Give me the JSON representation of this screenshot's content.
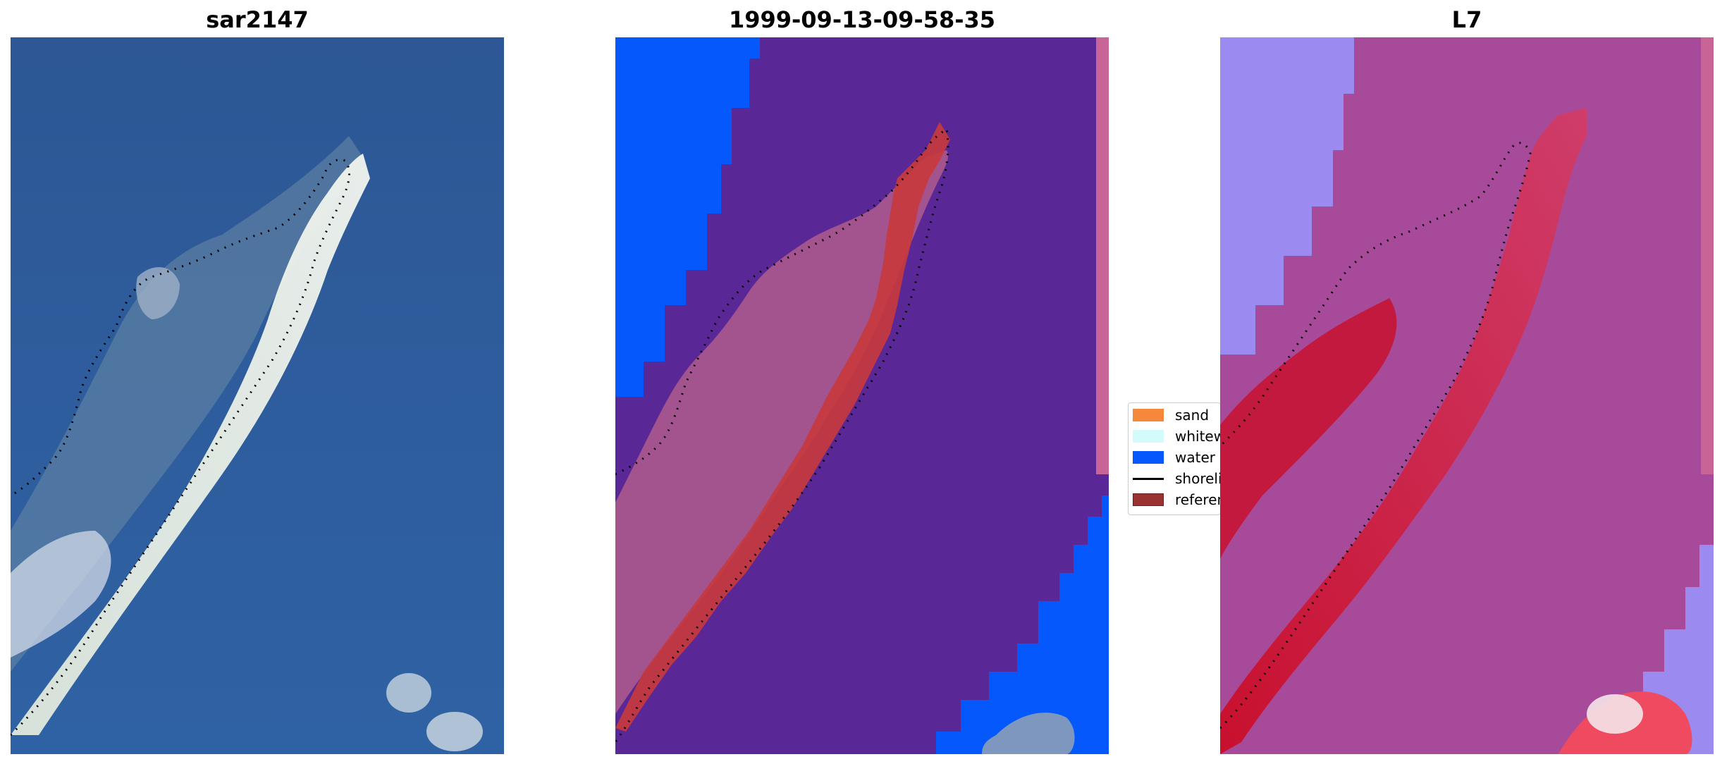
{
  "panels": [
    {
      "title": "sar2147"
    },
    {
      "title": "1999-09-13-09-58-35"
    },
    {
      "title": "L7"
    }
  ],
  "legend": {
    "items": [
      {
        "label": "sand",
        "color": "#f5883a",
        "kind": "patch"
      },
      {
        "label": "whitewater",
        "color": "#d4fbfb",
        "kind": "patch"
      },
      {
        "label": "water",
        "color": "#0558fc",
        "kind": "patch"
      },
      {
        "label": "shoreline",
        "color": "#000000",
        "kind": "line"
      },
      {
        "label": "reference shoreline buffer",
        "color": "#9b3232",
        "kind": "patch"
      }
    ]
  },
  "colors": {
    "satellite_sea": "#2f5c9a",
    "satellite_sand": "#e9ecdf",
    "class_water": "#0558fc",
    "class_background": "#5a2896",
    "class_sand_overlay": "#b05a8c",
    "buffer_red": "#c8383c",
    "index_low": "#9b8af0",
    "index_mid": "#a84a9a",
    "index_high": "#c8102e",
    "strip_pink": "#c86496"
  }
}
